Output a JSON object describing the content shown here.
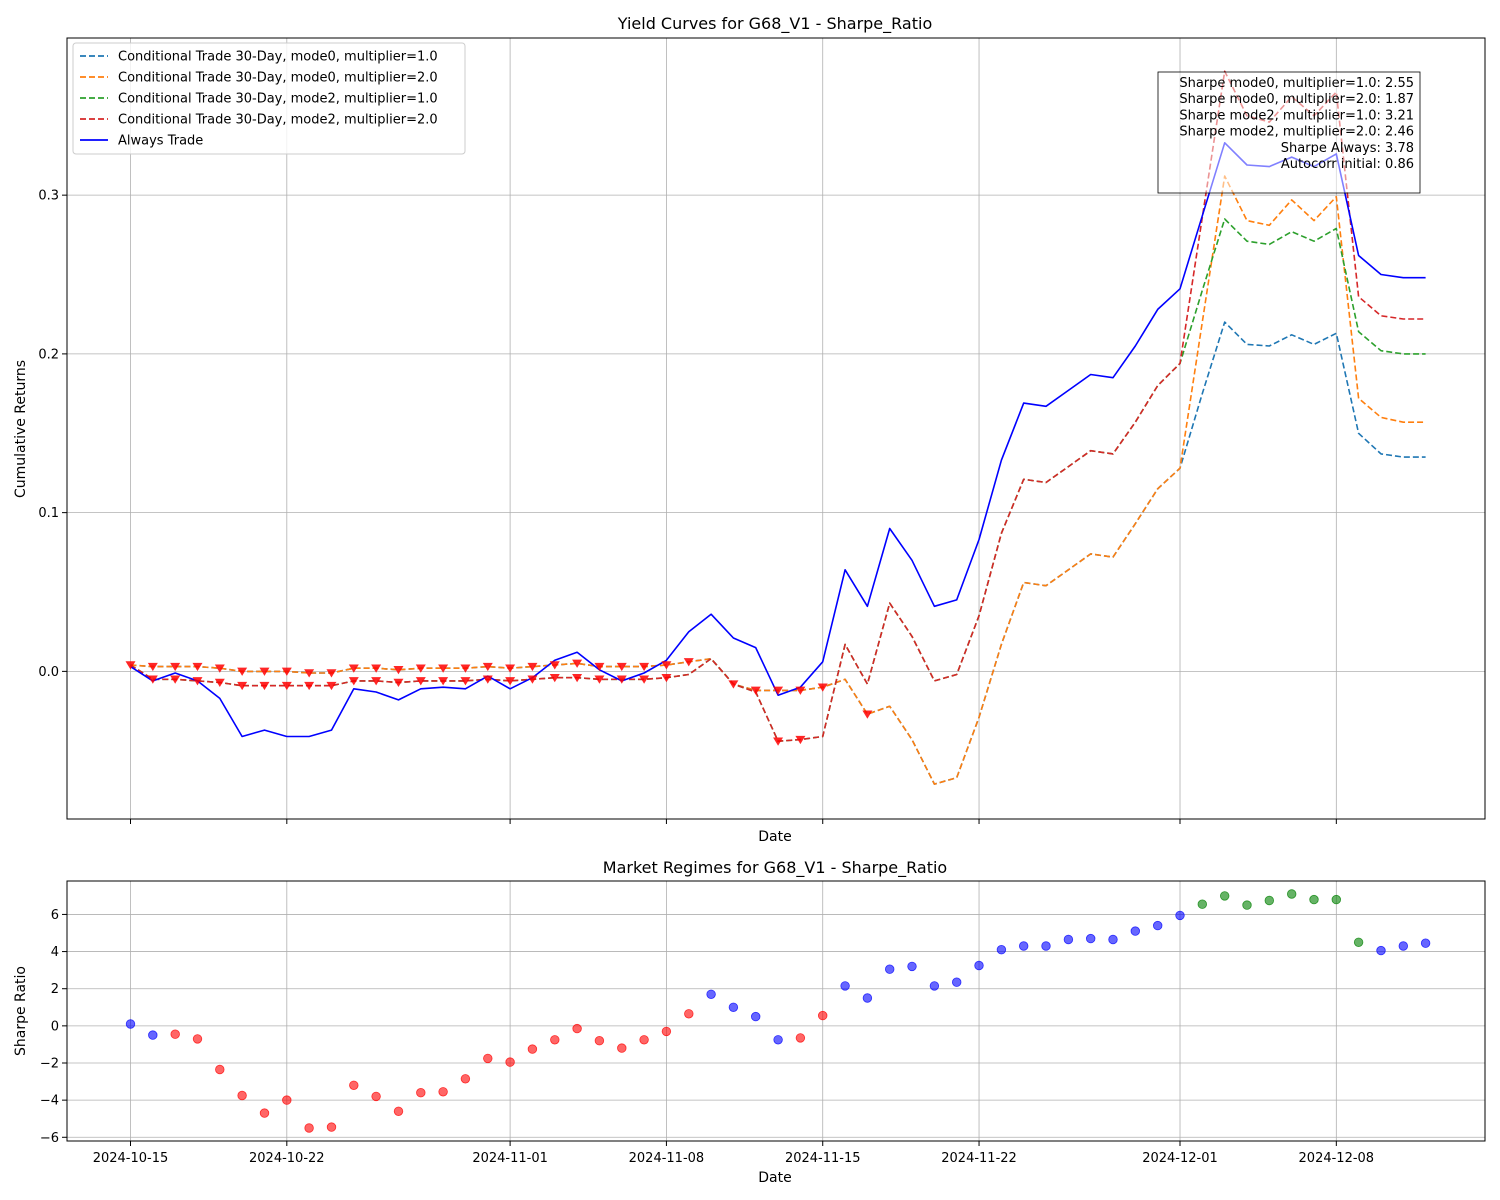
{
  "chart_data": [
    {
      "type": "line",
      "title": "Yield Curves for G68_V1 - Sharpe_Ratio",
      "xlabel": "Date",
      "ylabel": "Cumulative Returns",
      "ylim": [
        -0.093,
        0.399
      ],
      "yticks": [
        "0.0",
        "0.1",
        "0.2",
        "0.3"
      ],
      "ytick_values": [
        0.0,
        0.1,
        0.2,
        0.3
      ],
      "grid": true,
      "legend_location": "upper left",
      "x": [
        "2024-10-15",
        "2024-10-16",
        "2024-10-17",
        "2024-10-18",
        "2024-10-19",
        "2024-10-20",
        "2024-10-21",
        "2024-10-22",
        "2024-10-23",
        "2024-10-24",
        "2024-10-25",
        "2024-10-26",
        "2024-10-27",
        "2024-10-28",
        "2024-10-29",
        "2024-10-30",
        "2024-10-31",
        "2024-11-01",
        "2024-11-02",
        "2024-11-03",
        "2024-11-04",
        "2024-11-05",
        "2024-11-06",
        "2024-11-07",
        "2024-11-08",
        "2024-11-09",
        "2024-11-10",
        "2024-11-11",
        "2024-11-12",
        "2024-11-13",
        "2024-11-14",
        "2024-11-15",
        "2024-11-16",
        "2024-11-17",
        "2024-11-18",
        "2024-11-19",
        "2024-11-20",
        "2024-11-21",
        "2024-11-22",
        "2024-11-23",
        "2024-11-24",
        "2024-11-25",
        "2024-11-26",
        "2024-11-27",
        "2024-11-28",
        "2024-11-29",
        "2024-11-30",
        "2024-12-01",
        "2024-12-02",
        "2024-12-03",
        "2024-12-04",
        "2024-12-05",
        "2024-12-06",
        "2024-12-07",
        "2024-12-08",
        "2024-12-09",
        "2024-12-10",
        "2024-12-11",
        "2024-12-12"
      ],
      "series": [
        {
          "name": "Conditional Trade 30-Day, mode0, multiplier=1.0",
          "color": "#1f77b4",
          "dash": true,
          "values": [
            0.004,
            0.003,
            0.003,
            0.003,
            0.002,
            0.0,
            0.0,
            0.0,
            -0.001,
            -0.001,
            0.002,
            0.002,
            0.001,
            0.002,
            0.002,
            0.002,
            0.003,
            0.002,
            0.003,
            0.004,
            0.005,
            0.003,
            0.003,
            0.003,
            0.004,
            0.006,
            0.008,
            -0.008,
            -0.012,
            -0.012,
            -0.012,
            -0.01,
            -0.005,
            -0.027,
            -0.022,
            -0.043,
            -0.071,
            -0.067,
            -0.029,
            0.017,
            0.056,
            0.054,
            0.064,
            0.074,
            0.072,
            0.093,
            0.115,
            0.128,
            0.175,
            0.22,
            0.206,
            0.205,
            0.212,
            0.206,
            0.213,
            0.15,
            0.137,
            0.135,
            0.135
          ]
        },
        {
          "name": "Conditional Trade 30-Day, mode0, multiplier=2.0",
          "color": "#ff7f0e",
          "dash": true,
          "values": [
            0.004,
            0.003,
            0.003,
            0.003,
            0.002,
            0.0,
            0.0,
            0.0,
            -0.001,
            -0.001,
            0.002,
            0.002,
            0.001,
            0.002,
            0.002,
            0.002,
            0.003,
            0.002,
            0.003,
            0.004,
            0.005,
            0.003,
            0.003,
            0.003,
            0.004,
            0.006,
            0.008,
            -0.008,
            -0.012,
            -0.012,
            -0.012,
            -0.01,
            -0.005,
            -0.027,
            -0.022,
            -0.043,
            -0.071,
            -0.067,
            -0.029,
            0.017,
            0.056,
            0.054,
            0.064,
            0.074,
            0.072,
            0.093,
            0.115,
            0.128,
            0.22,
            0.312,
            0.284,
            0.281,
            0.297,
            0.284,
            0.299,
            0.172,
            0.16,
            0.157,
            0.157
          ]
        },
        {
          "name": "Conditional Trade 30-Day, mode2, multiplier=1.0",
          "color": "#2ca02c",
          "dash": true,
          "values": [
            0.004,
            -0.005,
            -0.005,
            -0.006,
            -0.007,
            -0.009,
            -0.009,
            -0.009,
            -0.009,
            -0.009,
            -0.006,
            -0.006,
            -0.007,
            -0.006,
            -0.006,
            -0.006,
            -0.005,
            -0.006,
            -0.005,
            -0.004,
            -0.004,
            -0.005,
            -0.005,
            -0.005,
            -0.004,
            -0.002,
            0.008,
            -0.008,
            -0.013,
            -0.044,
            -0.043,
            -0.041,
            0.017,
            -0.008,
            0.043,
            0.022,
            -0.006,
            -0.002,
            0.035,
            0.087,
            0.121,
            0.119,
            0.129,
            0.139,
            0.137,
            0.157,
            0.18,
            0.194,
            0.24,
            0.285,
            0.271,
            0.269,
            0.277,
            0.271,
            0.279,
            0.214,
            0.202,
            0.2,
            0.2
          ]
        },
        {
          "name": "Conditional Trade 30-Day, mode2, multiplier=2.0",
          "color": "#d62728",
          "dash": true,
          "values": [
            0.004,
            -0.005,
            -0.005,
            -0.006,
            -0.007,
            -0.009,
            -0.009,
            -0.009,
            -0.009,
            -0.009,
            -0.006,
            -0.006,
            -0.007,
            -0.006,
            -0.006,
            -0.006,
            -0.005,
            -0.006,
            -0.005,
            -0.004,
            -0.004,
            -0.005,
            -0.005,
            -0.005,
            -0.004,
            -0.002,
            0.008,
            -0.008,
            -0.013,
            -0.044,
            -0.043,
            -0.041,
            0.017,
            -0.008,
            0.043,
            0.022,
            -0.006,
            -0.002,
            0.035,
            0.087,
            0.121,
            0.119,
            0.129,
            0.139,
            0.137,
            0.157,
            0.18,
            0.194,
            0.286,
            0.378,
            0.35,
            0.346,
            0.362,
            0.35,
            0.365,
            0.236,
            0.224,
            0.222,
            0.222
          ]
        },
        {
          "name": "Always Trade",
          "color": "#0000ff",
          "dash": false,
          "values": [
            0.003,
            -0.006,
            -0.001,
            -0.006,
            -0.017,
            -0.041,
            -0.037,
            -0.041,
            -0.041,
            -0.037,
            -0.011,
            -0.013,
            -0.018,
            -0.011,
            -0.01,
            -0.011,
            -0.003,
            -0.011,
            -0.004,
            0.007,
            0.012,
            0.001,
            -0.006,
            -0.001,
            0.007,
            0.025,
            0.036,
            0.021,
            0.015,
            -0.015,
            -0.01,
            0.006,
            0.064,
            0.041,
            0.09,
            0.07,
            0.041,
            0.045,
            0.083,
            0.133,
            0.169,
            0.167,
            0.177,
            0.187,
            0.185,
            0.205,
            0.228,
            0.241,
            0.287,
            0.333,
            0.319,
            0.318,
            0.324,
            0.318,
            0.326,
            0.262,
            0.25,
            0.248,
            0.248
          ]
        }
      ],
      "markers": {
        "color": "#ff0000",
        "shape": "triangle-down",
        "x": [
          "2024-10-15",
          "2024-10-16",
          "2024-10-16",
          "2024-10-17",
          "2024-10-17",
          "2024-10-18",
          "2024-10-18",
          "2024-10-19",
          "2024-10-19",
          "2024-10-20",
          "2024-10-20",
          "2024-10-21",
          "2024-10-21",
          "2024-10-22",
          "2024-10-22",
          "2024-10-23",
          "2024-10-23",
          "2024-10-24",
          "2024-10-24",
          "2024-10-25",
          "2024-10-25",
          "2024-10-26",
          "2024-10-26",
          "2024-10-27",
          "2024-10-27",
          "2024-10-28",
          "2024-10-28",
          "2024-10-29",
          "2024-10-29",
          "2024-10-30",
          "2024-10-30",
          "2024-10-31",
          "2024-10-31",
          "2024-11-01",
          "2024-11-01",
          "2024-11-02",
          "2024-11-02",
          "2024-11-03",
          "2024-11-03",
          "2024-11-04",
          "2024-11-04",
          "2024-11-05",
          "2024-11-05",
          "2024-11-06",
          "2024-11-06",
          "2024-11-07",
          "2024-11-07",
          "2024-11-08",
          "2024-11-08",
          "2024-11-09",
          "2024-11-11",
          "2024-11-12",
          "2024-11-13",
          "2024-11-13",
          "2024-11-14",
          "2024-11-14",
          "2024-11-15",
          "2024-11-17"
        ],
        "y": [
          0.004,
          0.003,
          -0.005,
          0.003,
          -0.005,
          0.003,
          -0.006,
          0.002,
          -0.007,
          0.0,
          -0.009,
          0.0,
          -0.009,
          0.0,
          -0.009,
          -0.001,
          -0.009,
          -0.001,
          -0.009,
          0.002,
          -0.006,
          0.002,
          -0.006,
          0.001,
          -0.007,
          0.002,
          -0.006,
          0.002,
          -0.006,
          0.002,
          -0.006,
          0.003,
          -0.005,
          0.002,
          -0.006,
          0.003,
          -0.005,
          0.004,
          -0.004,
          0.005,
          -0.004,
          0.003,
          -0.005,
          0.003,
          -0.005,
          0.003,
          -0.005,
          0.004,
          -0.004,
          0.006,
          -0.008,
          -0.012,
          -0.012,
          -0.044,
          -0.012,
          -0.043,
          -0.01,
          -0.027
        ]
      },
      "annotation": [
        "Sharpe mode0, multiplier=1.0: 2.55",
        "Sharpe mode0, multiplier=2.0: 1.87",
        "Sharpe mode2, multiplier=1.0: 3.21",
        "Sharpe mode2, multiplier=2.0: 2.46",
        "Sharpe Always: 3.78",
        "Autocorr initial: 0.86"
      ]
    },
    {
      "type": "scatter",
      "title": "Market Regimes for G68_V1 - Sharpe_Ratio",
      "xlabel": "Date",
      "ylabel": "Sharpe Ratio",
      "ylim": [
        -6.2,
        7.8
      ],
      "yticks": [
        "−6",
        "−4",
        "−2",
        "0",
        "2",
        "4",
        "6"
      ],
      "ytick_values": [
        -6,
        -4,
        -2,
        0,
        2,
        4,
        6
      ],
      "xticks": [
        "2024-10-15",
        "2024-10-22",
        "2024-11-01",
        "2024-11-08",
        "2024-11-15",
        "2024-11-22",
        "2024-12-01",
        "2024-12-08"
      ],
      "grid": true,
      "regime_colors": {
        "neutral": "#0000ff",
        "bear": "#ff0000",
        "bull": "#008000"
      },
      "x": [
        "2024-10-15",
        "2024-10-16",
        "2024-10-17",
        "2024-10-18",
        "2024-10-19",
        "2024-10-20",
        "2024-10-21",
        "2024-10-22",
        "2024-10-23",
        "2024-10-24",
        "2024-10-25",
        "2024-10-26",
        "2024-10-27",
        "2024-10-28",
        "2024-10-29",
        "2024-10-30",
        "2024-10-31",
        "2024-11-01",
        "2024-11-02",
        "2024-11-03",
        "2024-11-04",
        "2024-11-05",
        "2024-11-06",
        "2024-11-07",
        "2024-11-08",
        "2024-11-09",
        "2024-11-10",
        "2024-11-11",
        "2024-11-12",
        "2024-11-13",
        "2024-11-14",
        "2024-11-15",
        "2024-11-16",
        "2024-11-17",
        "2024-11-18",
        "2024-11-19",
        "2024-11-20",
        "2024-11-21",
        "2024-11-22",
        "2024-11-23",
        "2024-11-24",
        "2024-11-25",
        "2024-11-26",
        "2024-11-27",
        "2024-11-28",
        "2024-11-29",
        "2024-11-30",
        "2024-12-01",
        "2024-12-02",
        "2024-12-03",
        "2024-12-04",
        "2024-12-05",
        "2024-12-06",
        "2024-12-07",
        "2024-12-08",
        "2024-12-09",
        "2024-12-10",
        "2024-12-11",
        "2024-12-12"
      ],
      "values": [
        0.1,
        -0.5,
        -0.45,
        -0.7,
        -2.35,
        -3.75,
        -4.7,
        -4.0,
        -5.5,
        -5.45,
        -3.2,
        -3.8,
        -4.6,
        -3.6,
        -3.55,
        -2.85,
        -1.75,
        -1.95,
        -1.25,
        -0.75,
        -0.15,
        -0.8,
        -1.2,
        -0.75,
        -0.3,
        0.65,
        1.7,
        1.0,
        0.5,
        -0.75,
        -0.65,
        0.55,
        2.15,
        1.5,
        3.05,
        3.2,
        2.15,
        2.35,
        3.25,
        4.1,
        4.3,
        4.3,
        4.65,
        4.7,
        4.65,
        5.1,
        5.4,
        5.95,
        6.55,
        7.0,
        6.5,
        6.75,
        7.1,
        6.8,
        6.8,
        4.5,
        4.05,
        4.3,
        4.45
      ],
      "regimes": [
        "neutral",
        "neutral",
        "bear",
        "bear",
        "bear",
        "bear",
        "bear",
        "bear",
        "bear",
        "bear",
        "bear",
        "bear",
        "bear",
        "bear",
        "bear",
        "bear",
        "bear",
        "bear",
        "bear",
        "bear",
        "bear",
        "bear",
        "bear",
        "bear",
        "bear",
        "bear",
        "neutral",
        "neutral",
        "neutral",
        "neutral",
        "bear",
        "bear",
        "neutral",
        "neutral",
        "neutral",
        "neutral",
        "neutral",
        "neutral",
        "neutral",
        "neutral",
        "neutral",
        "neutral",
        "neutral",
        "neutral",
        "neutral",
        "neutral",
        "neutral",
        "neutral",
        "bull",
        "bull",
        "bull",
        "bull",
        "bull",
        "bull",
        "bull",
        "bull",
        "neutral",
        "neutral",
        "neutral"
      ]
    }
  ]
}
